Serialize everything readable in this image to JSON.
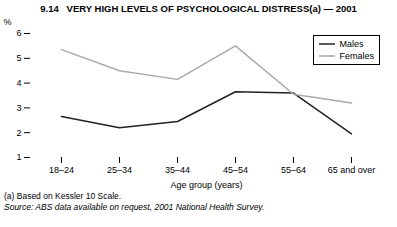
{
  "chart_data": {
    "type": "line",
    "title": "9.14   VERY HIGH LEVELS OF PSYCHOLOGICAL DISTRESS(a) — 2001",
    "xlabel": "Age group (years)",
    "ylabel": "%",
    "categories": [
      "18–24",
      "25–34",
      "35–44",
      "45–54",
      "55–64",
      "65 and over"
    ],
    "series": [
      {
        "name": "Males",
        "color": "#222222",
        "values": [
          2.65,
          2.2,
          2.45,
          3.65,
          3.6,
          1.95
        ]
      },
      {
        "name": "Females",
        "color": "#aaaaaa",
        "values": [
          5.35,
          4.5,
          4.15,
          5.5,
          3.55,
          3.2
        ]
      }
    ],
    "ylim": [
      1,
      6
    ],
    "yticks": [
      1,
      2,
      3,
      4,
      5,
      6
    ],
    "grid": false,
    "legend": "upper right",
    "annotations": [
      "(a) Based on Kessler 10 Scale.",
      "Source: ABS data available on request, 2001 National Health Survey."
    ]
  }
}
